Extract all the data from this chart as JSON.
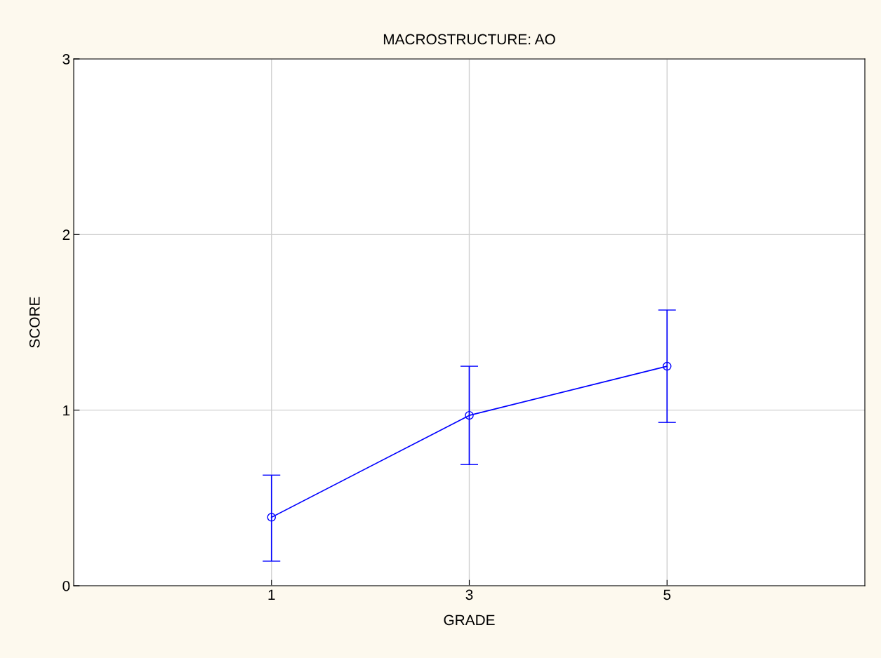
{
  "chart_data": {
    "type": "line",
    "title": "MACROSTRUCTURE: AO",
    "xlabel": "GRADE",
    "ylabel": "SCORE",
    "x": [
      1,
      3,
      5
    ],
    "series": [
      {
        "color": "#0000ff",
        "values": [
          0.39,
          0.97,
          1.25
        ],
        "errors": [
          [
            0.14,
            0.63
          ],
          [
            0.69,
            1.25
          ],
          [
            0.93,
            1.57
          ]
        ]
      }
    ],
    "xlim": [
      -1,
      7
    ],
    "xticks": [
      1,
      3,
      5
    ],
    "ylim": [
      0,
      3
    ],
    "yticks": [
      0,
      1,
      2,
      3
    ],
    "grid": true,
    "marker": "circle",
    "line_style": "solid"
  }
}
